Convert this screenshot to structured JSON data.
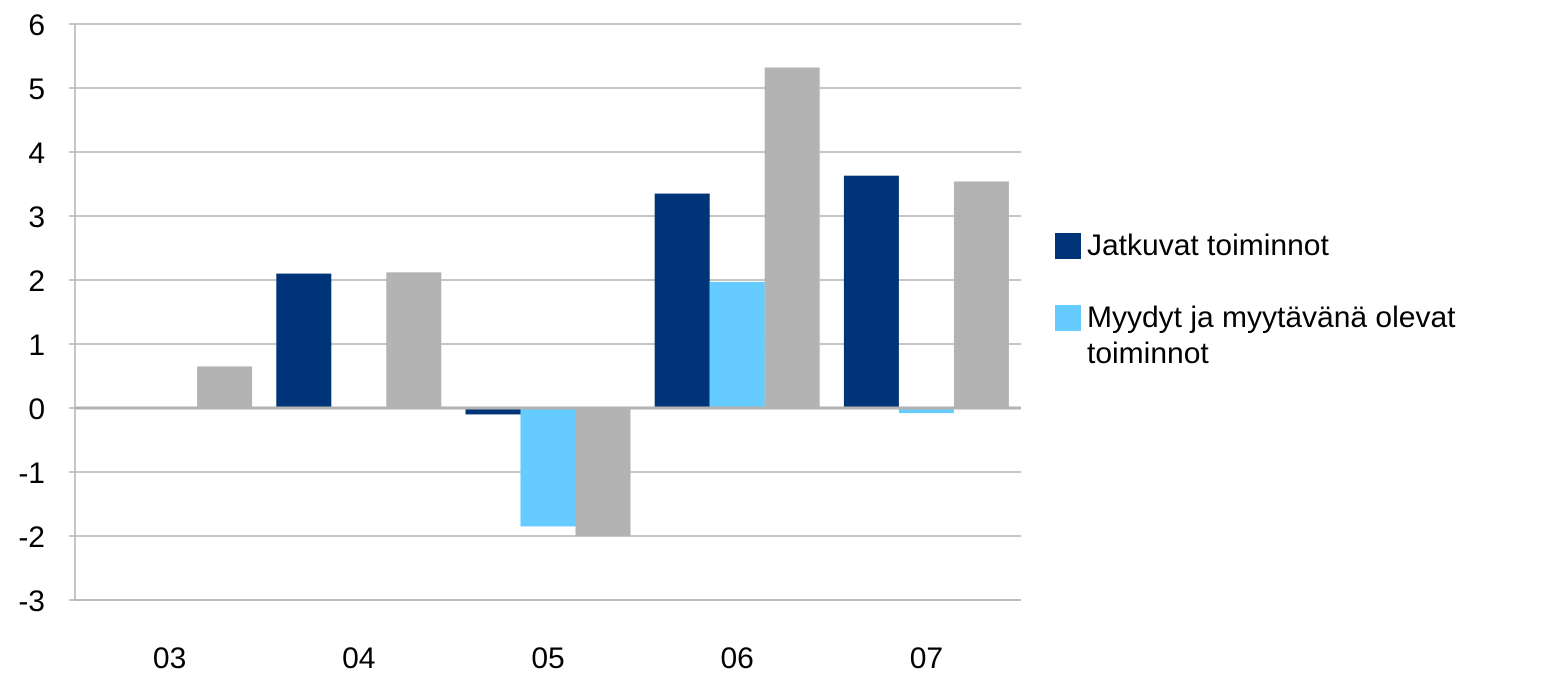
{
  "chart_data": {
    "type": "bar",
    "categories": [
      "03",
      "04",
      "05",
      "06",
      "07"
    ],
    "series": [
      {
        "name": "Jatkuvat toiminnot",
        "color": "#003478",
        "values": [
          0,
          2.1,
          -0.1,
          3.35,
          3.63
        ]
      },
      {
        "name": "Myydyt ja myytävänä olevat toiminnot",
        "color": "#66CCFF",
        "values": [
          0,
          0,
          -1.85,
          1.97,
          -0.08
        ]
      },
      {
        "name": "",
        "color": "#B3B3B3",
        "values": [
          0.65,
          2.12,
          -2.0,
          5.32,
          3.54
        ]
      }
    ],
    "ylim": [
      -3,
      6
    ],
    "yticks": [
      "-3",
      "-2",
      "-1",
      "0",
      "1",
      "2",
      "3",
      "4",
      "5",
      "6"
    ],
    "grid": true,
    "legend_position": "right",
    "title": "",
    "xlabel": "",
    "ylabel": ""
  },
  "legend": {
    "items": [
      {
        "label": "Jatkuvat toiminnot",
        "color": "#003478"
      },
      {
        "label": "Myydyt ja myytävänä olevat toiminnot",
        "color": "#66CCFF"
      }
    ]
  }
}
